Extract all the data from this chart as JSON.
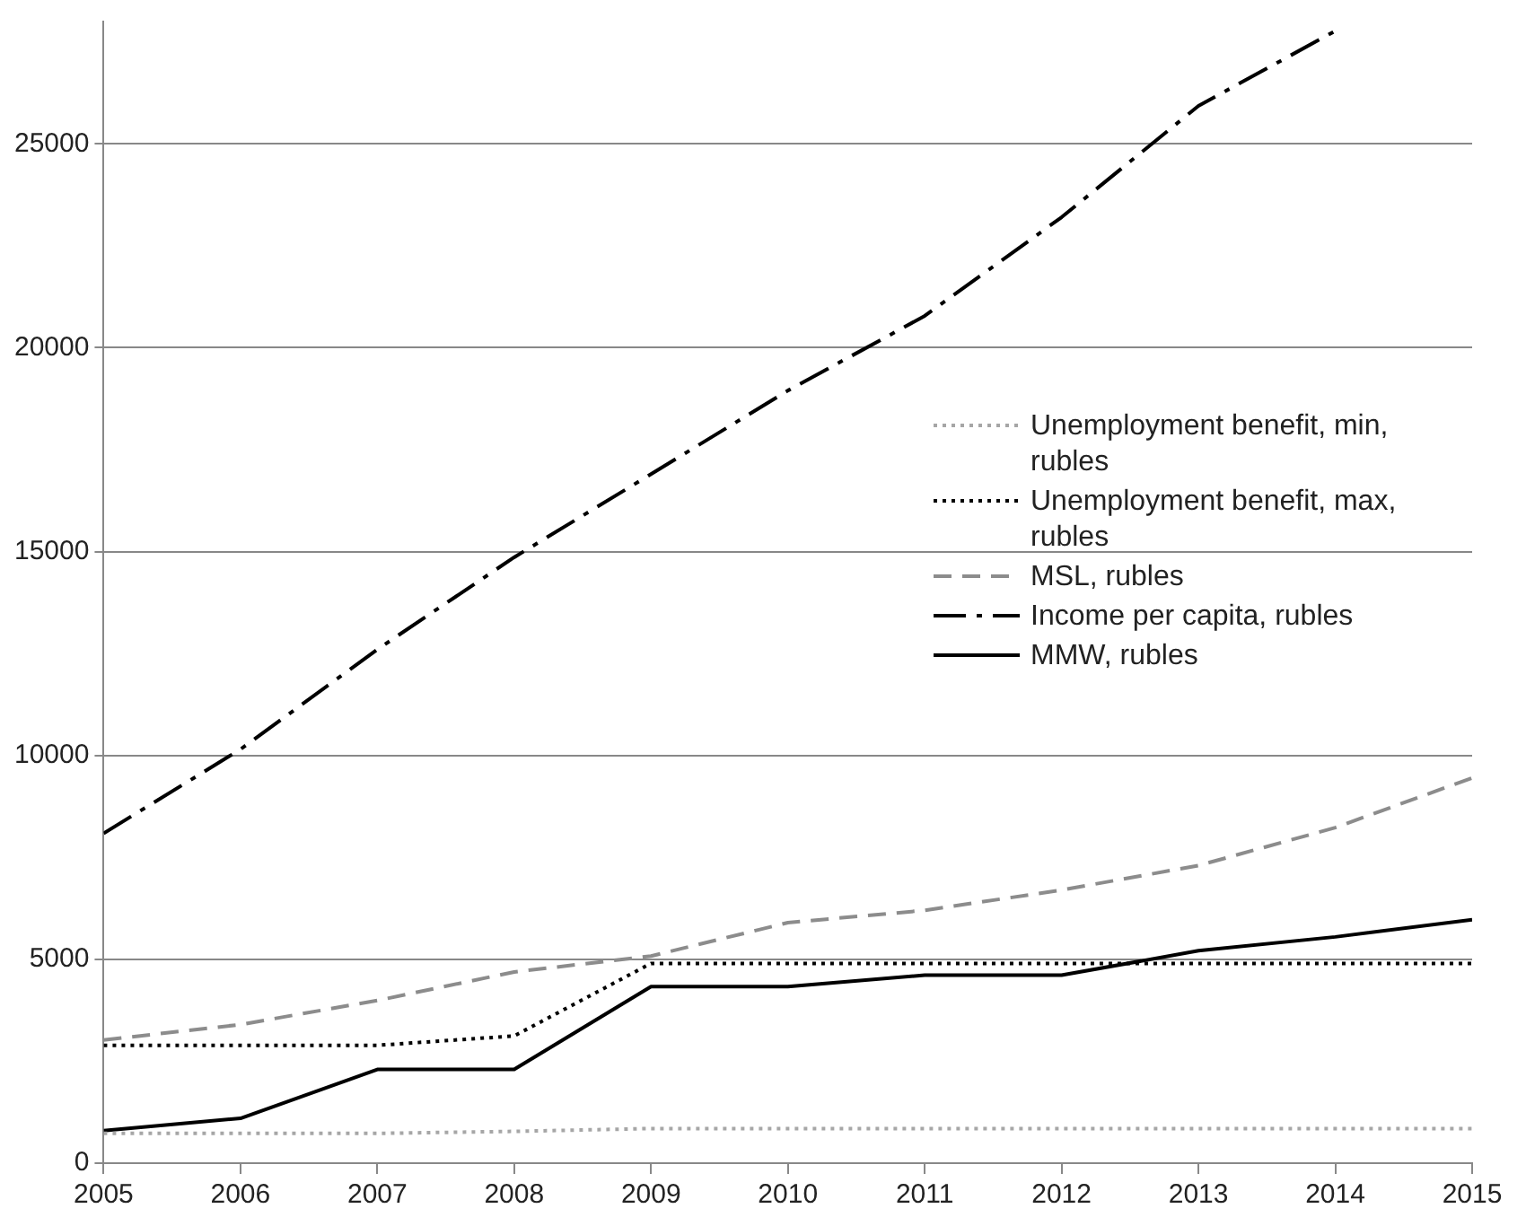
{
  "chart_data": {
    "type": "line",
    "x": [
      2005,
      2006,
      2007,
      2008,
      2009,
      2010,
      2011,
      2012,
      2013,
      2014,
      2015
    ],
    "xlim": [
      2005,
      2015
    ],
    "xticks": [
      2005,
      2006,
      2007,
      2008,
      2009,
      2010,
      2011,
      2012,
      2013,
      2014,
      2015
    ],
    "ylim": [
      0,
      28000
    ],
    "yticks": [
      0,
      5000,
      10000,
      15000,
      20000,
      25000
    ],
    "grid": "y",
    "legend": "right",
    "marker": "none",
    "series": [
      {
        "name": "Unemployment benefit, min, rubles",
        "color": "#a6a6a6",
        "line_style": "dotted",
        "values": [
          730,
          730,
          730,
          780,
          850,
          850,
          850,
          850,
          850,
          850,
          850
        ]
      },
      {
        "name": "Unemployment benefit, max, rubles",
        "color": "#000000",
        "line_style": "dotted",
        "values": [
          2890,
          2890,
          2890,
          3120,
          4900,
          4900,
          4900,
          4900,
          4900,
          4900,
          4900
        ]
      },
      {
        "name": "MSL, rubles",
        "color": "#8c8c8c",
        "line_style": "dashed",
        "values": [
          3020,
          3400,
          3990,
          4690,
          5080,
          5900,
          6200,
          6700,
          7300,
          8230,
          9450
        ]
      },
      {
        "name": "Income per capita, rubles",
        "color": "#000000",
        "line_style": "dashdot",
        "values": [
          8090,
          10150,
          12600,
          14860,
          16900,
          18950,
          20780,
          23200,
          25930,
          27770,
          null
        ]
      },
      {
        "name": "MMW, rubles",
        "color": "#000000",
        "line_style": "solid",
        "values": [
          800,
          1100,
          2300,
          2300,
          4330,
          4330,
          4610,
          4610,
          5210,
          5550,
          5970
        ]
      }
    ]
  }
}
